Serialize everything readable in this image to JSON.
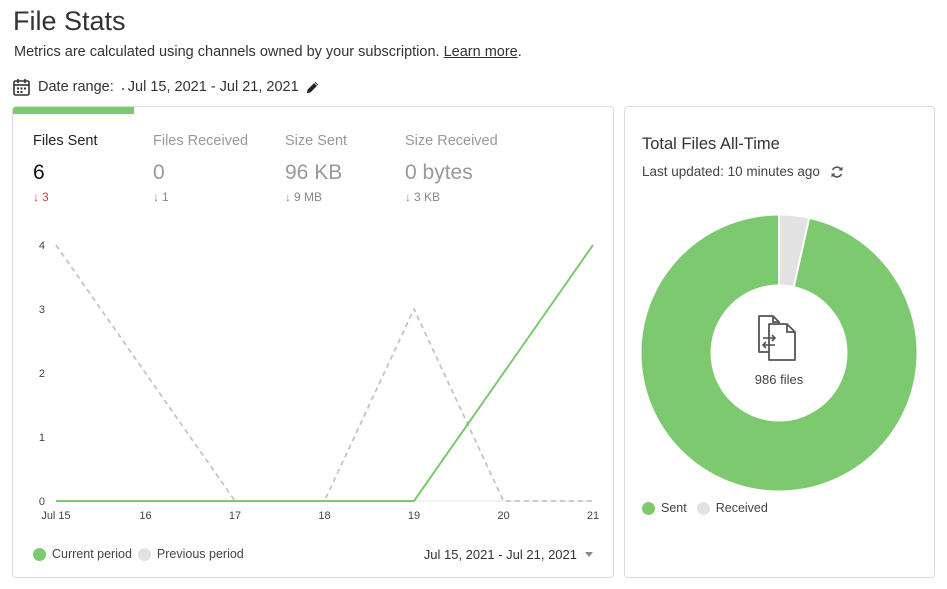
{
  "header": {
    "title": "File Stats",
    "subtitle": "Metrics are calculated using channels owned by your subscription.",
    "learn_more": "Learn more",
    "subtitle_end": "."
  },
  "date_range": {
    "label": "Date range:",
    "value": "Jul 15, 2021 - Jul 21, 2021",
    "calendar_icon": "calendar-icon",
    "edit_icon": "pencil-icon"
  },
  "metrics": [
    {
      "label": "Files Sent",
      "value": "6",
      "delta": "3",
      "active": true
    },
    {
      "label": "Files Received",
      "value": "0",
      "delta": "1",
      "active": false
    },
    {
      "label": "Size Sent",
      "value": "96 KB",
      "delta": "9 MB",
      "active": false
    },
    {
      "label": "Size Received",
      "value": "0 bytes",
      "delta": "3 KB",
      "active": false
    }
  ],
  "chart_data": {
    "type": "line",
    "categories": [
      "Jul 15",
      "16",
      "17",
      "18",
      "19",
      "20",
      "21"
    ],
    "yticks": [
      "0",
      "1",
      "2",
      "3",
      "4"
    ],
    "ylim": [
      0,
      4
    ],
    "series": [
      {
        "name": "Current period",
        "values": [
          0,
          0,
          0,
          0,
          0,
          2,
          4
        ],
        "color": "#7dc96f",
        "style": "solid"
      },
      {
        "name": "Previous period",
        "values": [
          4,
          2,
          0,
          0,
          3,
          0,
          0
        ],
        "color": "#c4c4c4",
        "style": "dashed"
      }
    ],
    "legend_position": "bottom-left",
    "grid": false
  },
  "legend": {
    "current": "Current period",
    "previous": "Previous period"
  },
  "period_select": {
    "value": "Jul 15, 2021 - Jul 21, 2021"
  },
  "total_card": {
    "title": "Total Files All-Time",
    "updated": "Last updated: 10 minutes ago",
    "refresh_icon": "refresh-icon",
    "center_icon": "file-transfer-icon",
    "files_label": "986 files",
    "donut": {
      "type": "pie",
      "categories": [
        "Sent",
        "Received"
      ],
      "values": [
        96.5,
        3.5
      ],
      "colors": [
        "#7dc96f",
        "#e2e2e2"
      ]
    },
    "legend": {
      "sent": "Sent",
      "received": "Received"
    }
  }
}
